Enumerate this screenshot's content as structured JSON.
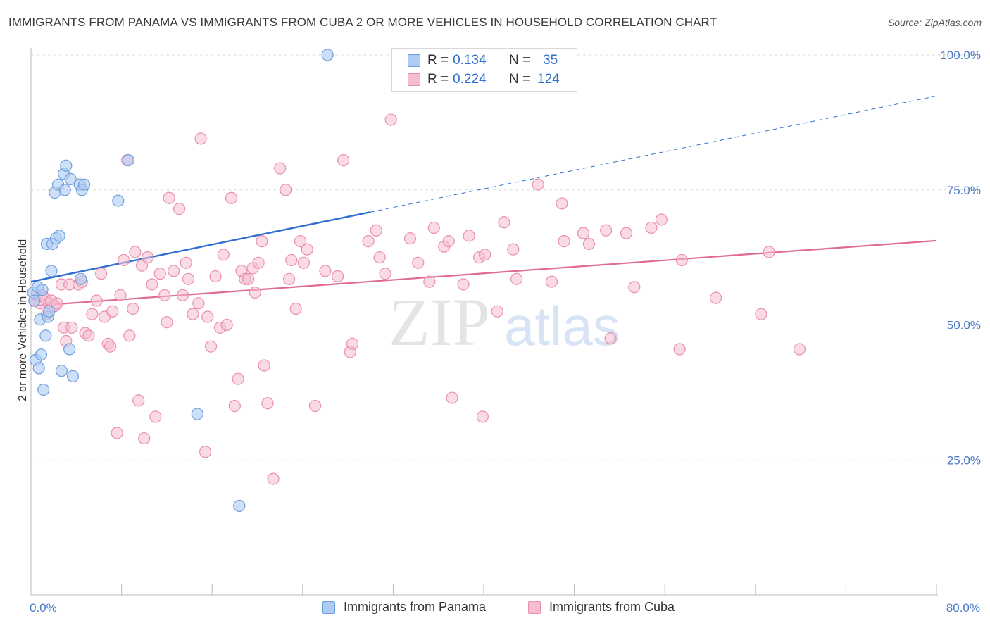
{
  "header": {
    "title": "IMMIGRANTS FROM PANAMA VS IMMIGRANTS FROM CUBA 2 OR MORE VEHICLES IN HOUSEHOLD CORRELATION CHART",
    "source": "Source: ZipAtlas.com"
  },
  "watermark": {
    "zip": "ZIP",
    "atlas": "atlas"
  },
  "legend": {
    "r_label": "R =",
    "n_label": "N =",
    "panama": {
      "r": "0.134",
      "n": "35"
    },
    "cuba": {
      "r": "0.224",
      "n": "124"
    }
  },
  "bottom_legend": {
    "panama": "Immigrants from Panama",
    "cuba": "Immigrants from Cuba"
  },
  "colors": {
    "panama_fill": "#aecbf1",
    "panama_stroke": "#6f9fdd",
    "panama_line": "#2f6fd0",
    "cuba_fill": "#f6bcd0",
    "cuba_stroke": "#e98fae",
    "cuba_line": "#e06a93",
    "tick": "#4a78c8",
    "grid": "#dddddd"
  },
  "chart_data": {
    "type": "scatter",
    "title": "IMMIGRANTS FROM PANAMA VS IMMIGRANTS FROM CUBA 2 OR MORE VEHICLES IN HOUSEHOLD CORRELATION CHART",
    "xlabel": "",
    "ylabel": "2 or more Vehicles in Household",
    "xlim": [
      0,
      80
    ],
    "ylim": [
      0,
      100
    ],
    "x_tick_labels": [
      "0.0%",
      "80.0%"
    ],
    "y_ticks": [
      25,
      50,
      75,
      100
    ],
    "y_tick_labels": [
      "25.0%",
      "50.0%",
      "75.0%",
      "100.0%"
    ],
    "grid": "horizontal dashed",
    "series": [
      {
        "name": "Immigrants from Panama",
        "R": 0.134,
        "N": 35,
        "trend": {
          "x": [
            0,
            30
          ],
          "y": [
            58,
            70.9
          ],
          "extended_to": [
            80,
            92.4
          ],
          "extension_style": "dashed"
        },
        "points": [
          [
            0.2,
            56
          ],
          [
            0.3,
            54.5
          ],
          [
            0.4,
            43.5
          ],
          [
            0.6,
            57
          ],
          [
            0.7,
            42
          ],
          [
            0.8,
            51
          ],
          [
            0.9,
            44.5
          ],
          [
            1.0,
            56.5
          ],
          [
            1.1,
            38
          ],
          [
            1.3,
            48
          ],
          [
            1.4,
            65
          ],
          [
            1.5,
            51.5
          ],
          [
            1.6,
            52.5
          ],
          [
            1.8,
            60
          ],
          [
            1.9,
            65
          ],
          [
            2.1,
            74.5
          ],
          [
            2.2,
            66
          ],
          [
            2.4,
            76
          ],
          [
            2.5,
            66.5
          ],
          [
            2.7,
            41.5
          ],
          [
            2.9,
            78
          ],
          [
            3.0,
            75
          ],
          [
            3.1,
            79.5
          ],
          [
            3.4,
            45.5
          ],
          [
            3.5,
            77
          ],
          [
            3.7,
            40.5
          ],
          [
            4.3,
            76
          ],
          [
            4.4,
            58.5
          ],
          [
            4.5,
            75
          ],
          [
            4.7,
            76
          ],
          [
            7.7,
            73
          ],
          [
            8.6,
            80.5
          ],
          [
            14.7,
            33.5
          ],
          [
            18.4,
            16.5
          ],
          [
            26.2,
            100
          ]
        ]
      },
      {
        "name": "Immigrants from Cuba",
        "R": 0.224,
        "N": 124,
        "trend": {
          "x": [
            0,
            80
          ],
          "y": [
            53.5,
            65.6
          ]
        },
        "points": [
          [
            0.3,
            54.5
          ],
          [
            0.5,
            55.5
          ],
          [
            0.8,
            54
          ],
          [
            1.0,
            55.5
          ],
          [
            1.2,
            55
          ],
          [
            1.4,
            52
          ],
          [
            1.6,
            54
          ],
          [
            1.8,
            54.5
          ],
          [
            2.1,
            53.5
          ],
          [
            2.3,
            54
          ],
          [
            2.7,
            57.5
          ],
          [
            2.9,
            49.5
          ],
          [
            3.1,
            47
          ],
          [
            3.4,
            57.5
          ],
          [
            3.6,
            49.5
          ],
          [
            4.2,
            57.5
          ],
          [
            4.5,
            58
          ],
          [
            4.8,
            48.5
          ],
          [
            5.1,
            48
          ],
          [
            5.4,
            52
          ],
          [
            5.8,
            54.5
          ],
          [
            6.2,
            59.5
          ],
          [
            6.5,
            51.5
          ],
          [
            6.8,
            46.5
          ],
          [
            7.0,
            46
          ],
          [
            7.2,
            52.5
          ],
          [
            7.6,
            30
          ],
          [
            7.9,
            55.5
          ],
          [
            8.2,
            62
          ],
          [
            8.5,
            80.5
          ],
          [
            8.7,
            48
          ],
          [
            9.0,
            53
          ],
          [
            9.2,
            63.5
          ],
          [
            9.5,
            36
          ],
          [
            9.8,
            61
          ],
          [
            10.0,
            29
          ],
          [
            10.3,
            62.5
          ],
          [
            10.7,
            57.5
          ],
          [
            11.0,
            33
          ],
          [
            11.4,
            59.5
          ],
          [
            11.8,
            55.5
          ],
          [
            12.0,
            50.5
          ],
          [
            12.2,
            73.5
          ],
          [
            12.6,
            60
          ],
          [
            13.1,
            71.5
          ],
          [
            13.4,
            55.5
          ],
          [
            13.7,
            61.5
          ],
          [
            13.9,
            58.5
          ],
          [
            14.3,
            52
          ],
          [
            14.8,
            54
          ],
          [
            15.0,
            84.5
          ],
          [
            15.4,
            26.5
          ],
          [
            15.6,
            51.5
          ],
          [
            15.9,
            46
          ],
          [
            16.3,
            59
          ],
          [
            16.7,
            49.5
          ],
          [
            17.0,
            63
          ],
          [
            17.3,
            50
          ],
          [
            17.7,
            73.5
          ],
          [
            18.0,
            35
          ],
          [
            18.3,
            40
          ],
          [
            18.6,
            60
          ],
          [
            18.9,
            58.5
          ],
          [
            19.2,
            58.5
          ],
          [
            19.6,
            60.5
          ],
          [
            19.8,
            56
          ],
          [
            20.1,
            61.5
          ],
          [
            20.4,
            65.5
          ],
          [
            20.6,
            42.5
          ],
          [
            20.9,
            35.5
          ],
          [
            21.4,
            21.5
          ],
          [
            22.0,
            79
          ],
          [
            22.5,
            75
          ],
          [
            22.8,
            58.5
          ],
          [
            23.0,
            62
          ],
          [
            23.4,
            53
          ],
          [
            23.8,
            65.5
          ],
          [
            24.1,
            61.5
          ],
          [
            24.4,
            64
          ],
          [
            25.1,
            35
          ],
          [
            26.0,
            60
          ],
          [
            27.1,
            59
          ],
          [
            27.6,
            80.5
          ],
          [
            28.2,
            45
          ],
          [
            28.4,
            46.5
          ],
          [
            29.8,
            65.5
          ],
          [
            30.5,
            67.5
          ],
          [
            30.8,
            62.5
          ],
          [
            31.3,
            59.5
          ],
          [
            31.8,
            88
          ],
          [
            33.5,
            66
          ],
          [
            34.2,
            61.5
          ],
          [
            35.2,
            58
          ],
          [
            35.6,
            68
          ],
          [
            36.5,
            64.5
          ],
          [
            36.9,
            65.5
          ],
          [
            37.2,
            36.5
          ],
          [
            38.2,
            57.5
          ],
          [
            38.7,
            66.5
          ],
          [
            39.6,
            62.5
          ],
          [
            39.9,
            33
          ],
          [
            40.1,
            63
          ],
          [
            41.2,
            52.5
          ],
          [
            41.8,
            69
          ],
          [
            42.6,
            64
          ],
          [
            42.9,
            58.5
          ],
          [
            44.8,
            76
          ],
          [
            46.0,
            58
          ],
          [
            46.9,
            72.5
          ],
          [
            47.1,
            65.5
          ],
          [
            48.8,
            67
          ],
          [
            49.3,
            65
          ],
          [
            50.8,
            67.5
          ],
          [
            51.2,
            47.5
          ],
          [
            52.6,
            67
          ],
          [
            53.3,
            57
          ],
          [
            54.8,
            68
          ],
          [
            55.7,
            69.5
          ],
          [
            57.3,
            45.5
          ],
          [
            57.5,
            62
          ],
          [
            60.5,
            55
          ],
          [
            64.5,
            52
          ],
          [
            65.2,
            63.5
          ],
          [
            67.9,
            45.5
          ]
        ]
      }
    ]
  }
}
